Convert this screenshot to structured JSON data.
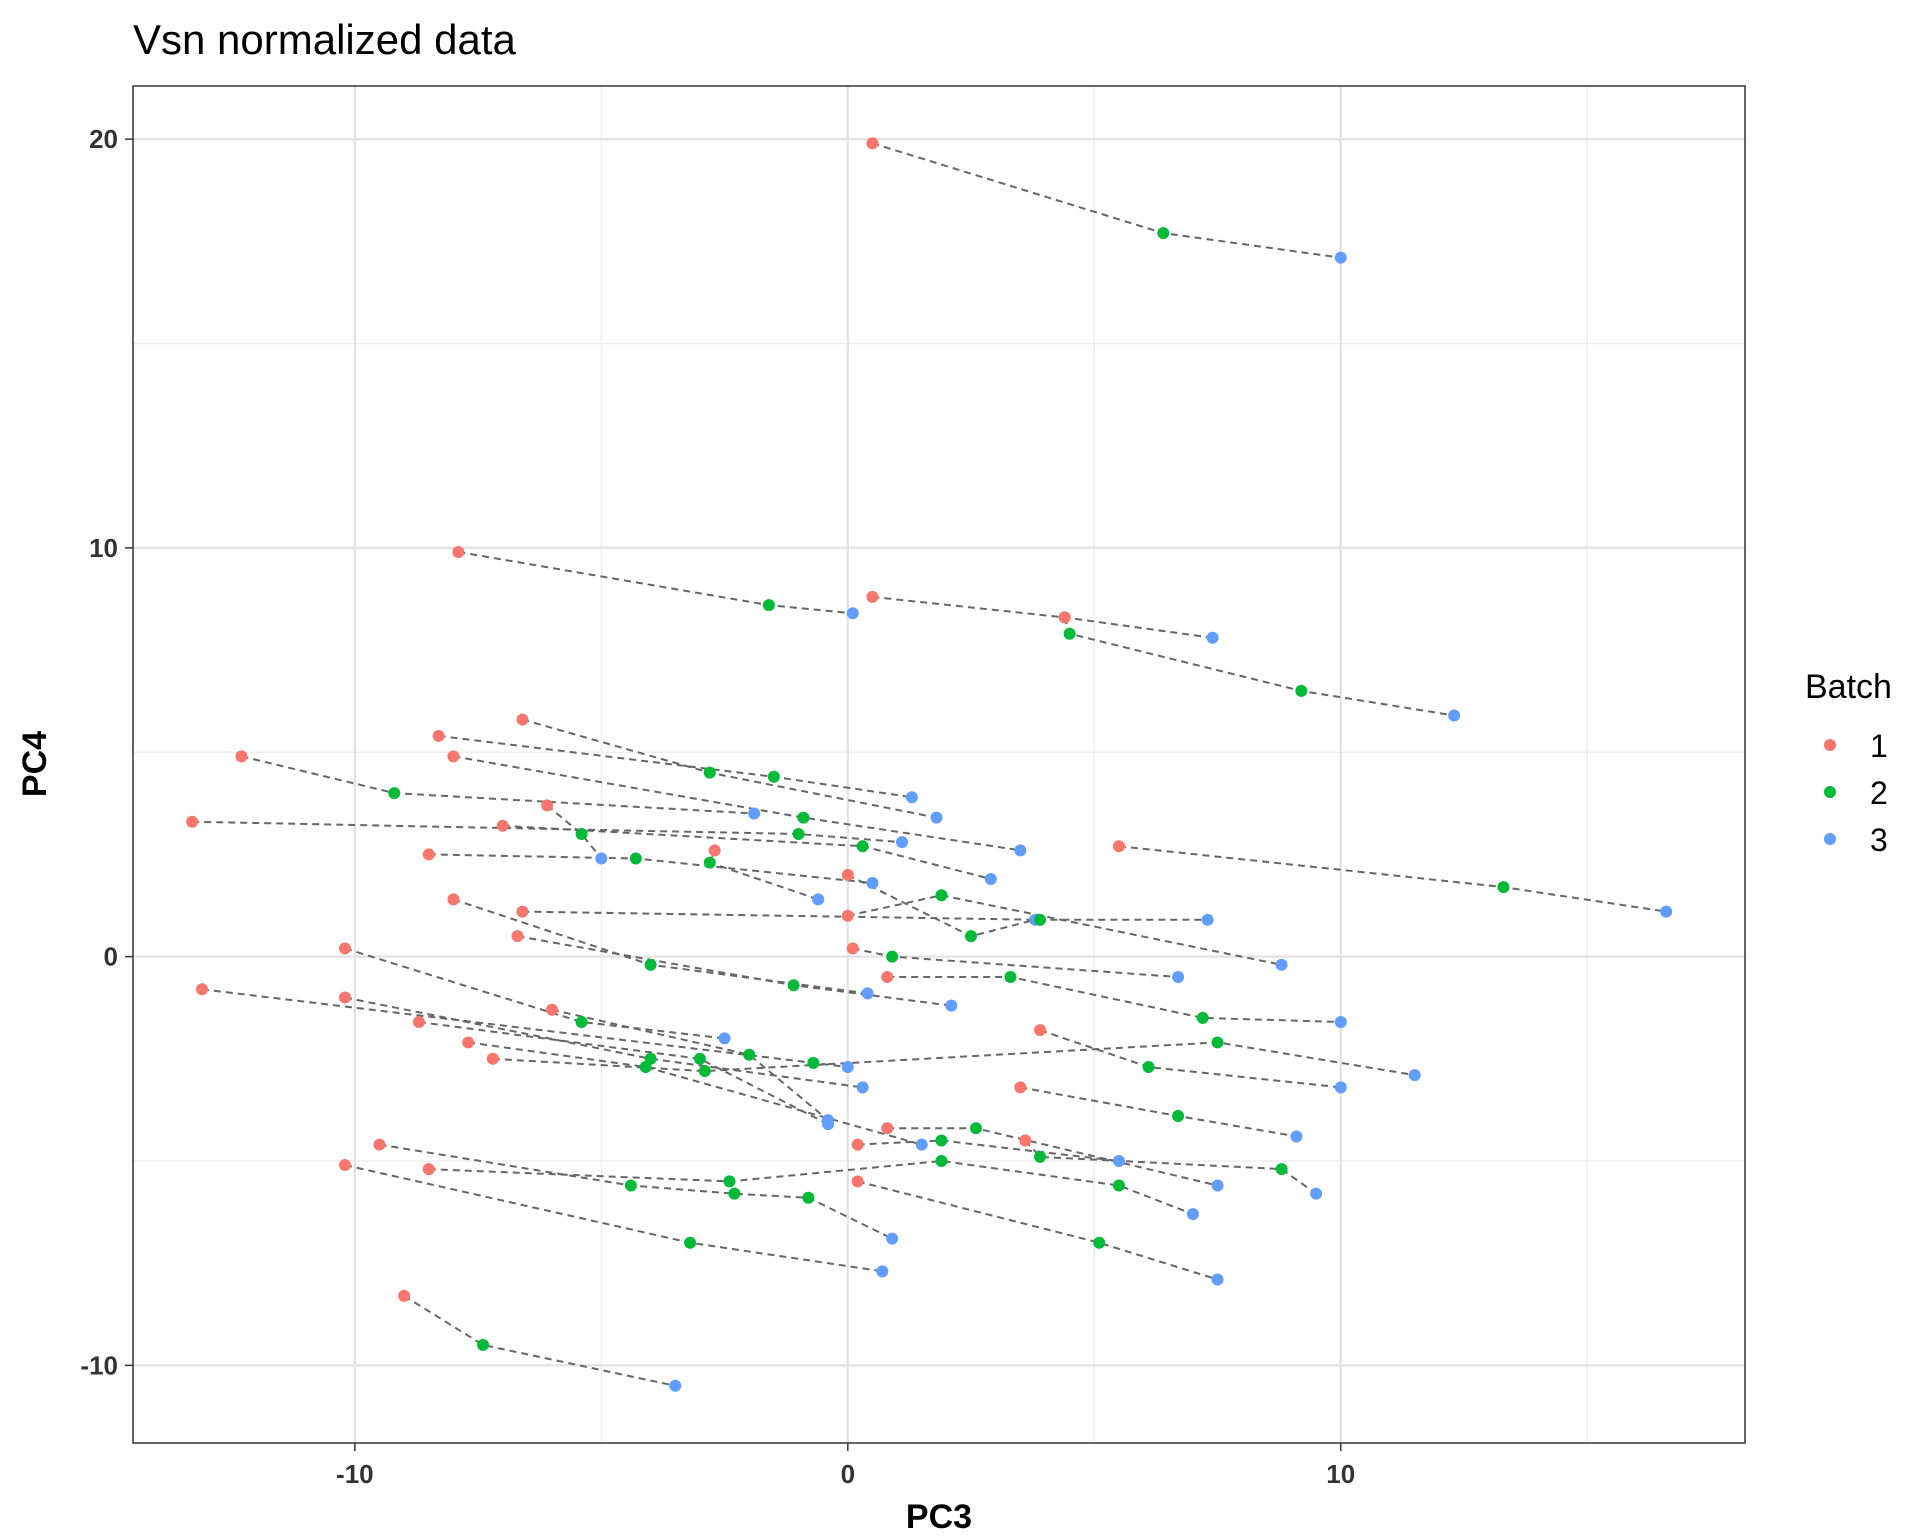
{
  "chart_data": {
    "type": "scatter",
    "title": "Vsn normalized data",
    "xlabel": "PC3",
    "ylabel": "PC4",
    "xlim": [
      -14.5,
      18.2
    ],
    "ylim": [
      -11.9,
      21.3
    ],
    "xticks": [
      -10,
      0,
      10
    ],
    "xtick_labels": [
      "-10",
      "0",
      "10"
    ],
    "yticks": [
      -10,
      0,
      10,
      20
    ],
    "ytick_labels": [
      "-10",
      "0",
      "10",
      "20"
    ],
    "grid": true,
    "connector_style": "dashed",
    "legend": {
      "title": "Batch",
      "placement": "right",
      "entries": [
        {
          "label": "1",
          "color": "#F8766D"
        },
        {
          "label": "2",
          "color": "#00BA38"
        },
        {
          "label": "3",
          "color": "#619CFF"
        }
      ]
    },
    "colors": {
      "1": "#F8766D",
      "2": "#00BA38",
      "3": "#619CFF"
    },
    "connector_color": "#666666",
    "tracks": [
      [
        [
          0.5,
          19.9
        ],
        [
          6.4,
          17.7
        ],
        [
          10.0,
          17.1
        ]
      ],
      [
        [
          -7.9,
          9.9
        ],
        [
          -1.6,
          8.6
        ],
        [
          0.1,
          8.4
        ]
      ],
      [
        [
          0.5,
          8.8
        ],
        [
          4.4,
          8.3
        ],
        [
          7.4,
          7.8
        ]
      ],
      [
        [
          4.4,
          8.3
        ],
        [
          4.5,
          7.9
        ],
        [
          9.2,
          6.5
        ],
        [
          12.3,
          5.9
        ]
      ],
      [
        [
          -6.6,
          5.8
        ],
        [
          -2.8,
          4.5
        ],
        [
          1.8,
          3.4
        ]
      ],
      [
        [
          -8.3,
          5.4
        ],
        [
          -1.5,
          4.4
        ],
        [
          1.3,
          3.9
        ]
      ],
      [
        [
          -12.3,
          4.9
        ],
        [
          -9.2,
          4.0
        ],
        [
          -1.9,
          3.5
        ]
      ],
      [
        [
          -8.0,
          4.9
        ],
        [
          -0.9,
          3.4
        ],
        [
          3.5,
          2.6
        ]
      ],
      [
        [
          -6.1,
          3.7
        ],
        [
          -5.4,
          3.0
        ],
        [
          -5.0,
          2.4
        ]
      ],
      [
        [
          -13.3,
          3.3
        ],
        [
          -1.0,
          3.0
        ],
        [
          1.1,
          2.8
        ]
      ],
      [
        [
          -7.0,
          3.2
        ],
        [
          0.3,
          2.7
        ],
        [
          2.9,
          1.9
        ]
      ],
      [
        [
          -8.5,
          2.5
        ],
        [
          -4.3,
          2.4
        ],
        [
          0.5,
          1.8
        ]
      ],
      [
        [
          -2.7,
          2.6
        ],
        [
          -2.8,
          2.3
        ],
        [
          -0.6,
          1.4
        ]
      ],
      [
        [
          5.5,
          2.7
        ],
        [
          13.3,
          1.7
        ],
        [
          16.6,
          1.1
        ]
      ],
      [
        [
          -0.0,
          2.0
        ],
        [
          2.5,
          0.5
        ],
        [
          3.8,
          0.9
        ]
      ],
      [
        [
          -8.0,
          1.4
        ],
        [
          -4.0,
          -0.2
        ],
        [
          0.4,
          -0.9
        ]
      ],
      [
        [
          -6.6,
          1.1
        ],
        [
          3.9,
          0.9
        ],
        [
          7.3,
          0.9
        ]
      ],
      [
        [
          0.0,
          1.0
        ],
        [
          1.9,
          1.5
        ],
        [
          8.8,
          -0.2
        ]
      ],
      [
        [
          -6.7,
          0.5
        ],
        [
          -1.1,
          -0.7
        ],
        [
          2.1,
          -1.2
        ]
      ],
      [
        [
          -10.2,
          0.2
        ],
        [
          -5.4,
          -1.6
        ],
        [
          -2.5,
          -2.0
        ]
      ],
      [
        [
          0.1,
          0.2
        ],
        [
          0.9,
          0.0
        ],
        [
          6.7,
          -0.5
        ]
      ],
      [
        [
          0.8,
          -0.5
        ],
        [
          3.3,
          -0.5
        ],
        [
          7.2,
          -1.5
        ],
        [
          10.0,
          -1.6
        ]
      ],
      [
        [
          -13.1,
          -0.8
        ],
        [
          -0.7,
          -2.6
        ],
        [
          -0.0,
          -2.7
        ]
      ],
      [
        [
          -10.2,
          -1.0
        ],
        [
          -4.0,
          -2.5
        ],
        [
          0.3,
          -3.2
        ]
      ],
      [
        [
          -8.7,
          -1.6
        ],
        [
          -3.0,
          -2.5
        ],
        [
          -0.4,
          -4.1
        ]
      ],
      [
        [
          -6.0,
          -1.3
        ],
        [
          -2.0,
          -2.4
        ],
        [
          -0.4,
          -4.0
        ]
      ],
      [
        [
          -7.7,
          -2.1
        ],
        [
          -4.1,
          -2.7
        ],
        [
          1.5,
          -4.6
        ]
      ],
      [
        [
          -7.2,
          -2.5
        ],
        [
          -2.9,
          -2.8
        ],
        [
          7.5,
          -2.1
        ],
        [
          11.5,
          -2.9
        ]
      ],
      [
        [
          3.9,
          -1.8
        ],
        [
          6.1,
          -2.7
        ],
        [
          10.0,
          -3.2
        ]
      ],
      [
        [
          3.5,
          -3.2
        ],
        [
          6.7,
          -3.9
        ],
        [
          9.1,
          -4.4
        ]
      ],
      [
        [
          0.8,
          -4.2
        ],
        [
          2.6,
          -4.2
        ],
        [
          7.5,
          -5.6
        ]
      ],
      [
        [
          0.2,
          -4.6
        ],
        [
          1.9,
          -4.5
        ],
        [
          5.5,
          -5.0
        ]
      ],
      [
        [
          3.6,
          -4.5
        ],
        [
          3.9,
          -4.9
        ],
        [
          8.8,
          -5.2
        ],
        [
          9.5,
          -5.8
        ]
      ],
      [
        [
          -9.5,
          -4.6
        ],
        [
          -4.4,
          -5.6
        ],
        [
          -2.3,
          -5.8
        ],
        [
          -0.8,
          -5.9
        ],
        [
          0.9,
          -6.9
        ]
      ],
      [
        [
          -10.2,
          -5.1
        ],
        [
          -3.2,
          -7.0
        ],
        [
          0.7,
          -7.7
        ]
      ],
      [
        [
          -8.5,
          -5.2
        ],
        [
          -2.4,
          -5.5
        ],
        [
          1.9,
          -5.0
        ],
        [
          5.5,
          -5.6
        ],
        [
          7.0,
          -6.3
        ]
      ],
      [
        [
          0.2,
          -5.5
        ],
        [
          5.1,
          -7.0
        ],
        [
          7.5,
          -7.9
        ]
      ],
      [
        [
          -9.0,
          -8.3
        ],
        [
          -7.4,
          -9.5
        ],
        [
          -3.5,
          -10.5
        ]
      ]
    ]
  }
}
